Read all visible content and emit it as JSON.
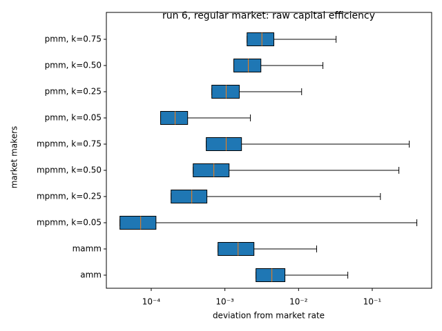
{
  "chart_data": {
    "type": "boxplot",
    "orientation": "horizontal",
    "title": "run 6, regular market: raw capital efficiency",
    "xlabel": "deviation from market rate",
    "ylabel": "market makers",
    "categories": [
      "pmm, k=0.75",
      "pmm, k=0.50",
      "pmm, k=0.25",
      "pmm, k=0.05",
      "mpmm, k=0.75",
      "mpmm, k=0.50",
      "mpmm, k=0.25",
      "mpmm, k=0.05",
      "mamm",
      "amm"
    ],
    "whislo": [
      0.002,
      0.00132,
      0.000664,
      0.000134,
      0.000558,
      0.000371,
      0.000186,
      3.76e-05,
      0.000806,
      0.00264
    ],
    "q1": [
      0.002,
      0.00132,
      0.000664,
      0.000134,
      0.000558,
      0.000371,
      0.000186,
      3.76e-05,
      0.000806,
      0.00264
    ],
    "median": [
      0.00318,
      0.00208,
      0.00104,
      0.000211,
      0.00104,
      0.000708,
      0.000355,
      7.19e-05,
      0.00151,
      0.00434
    ],
    "q3": [
      0.00462,
      0.00308,
      0.00157,
      0.000312,
      0.00168,
      0.00114,
      0.00057,
      0.000116,
      0.00248,
      0.00653
    ],
    "whishi": [
      0.0323,
      0.0214,
      0.011,
      0.00222,
      0.318,
      0.23,
      0.129,
      0.403,
      0.0176,
      0.0466
    ],
    "box_color": "#1f77b4",
    "median_color": "#ff7f0e",
    "xscale": "log",
    "xlim": [
      2.46e-05,
      0.64
    ],
    "xticks": [
      {
        "value": 0.0001,
        "label": "10⁻⁴"
      },
      {
        "value": 0.001,
        "label": "10⁻³"
      },
      {
        "value": 0.01,
        "label": "10⁻²"
      },
      {
        "value": 0.1,
        "label": "10⁻¹"
      }
    ]
  }
}
